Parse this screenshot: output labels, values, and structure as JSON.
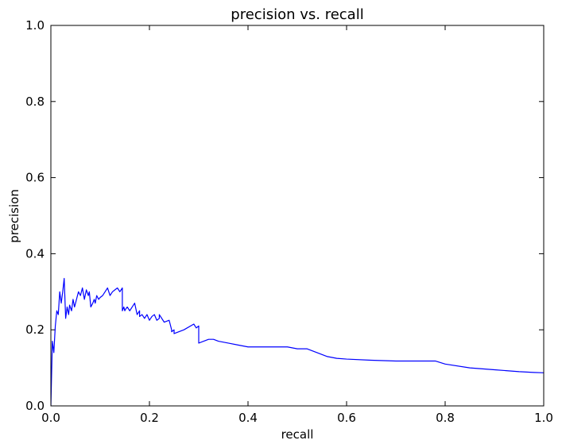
{
  "colors": {
    "line": "#0000ff",
    "axes": "#000000",
    "background": "#ffffff"
  },
  "chart_data": {
    "type": "line",
    "title": "precision vs. recall",
    "xlabel": "recall",
    "ylabel": "precision",
    "xlim": [
      0.0,
      1.0
    ],
    "ylim": [
      0.0,
      1.0
    ],
    "xticks": [
      "0.0",
      "0.2",
      "0.4",
      "0.6",
      "0.8",
      "1.0"
    ],
    "yticks": [
      "0.0",
      "0.2",
      "0.4",
      "0.6",
      "0.8",
      "1.0"
    ],
    "grid": false,
    "legend": false,
    "series": [
      {
        "x": [
          0.0,
          0.003,
          0.006,
          0.009,
          0.012,
          0.015,
          0.018,
          0.021,
          0.024,
          0.027,
          0.03,
          0.033,
          0.036,
          0.038,
          0.042,
          0.045,
          0.048,
          0.052,
          0.056,
          0.06,
          0.064,
          0.068,
          0.072,
          0.076,
          0.078,
          0.081,
          0.085,
          0.088,
          0.09,
          0.093,
          0.097,
          0.1,
          0.105,
          0.11,
          0.115,
          0.12,
          0.125,
          0.13,
          0.135,
          0.14,
          0.145,
          0.145,
          0.148,
          0.15,
          0.152,
          0.155,
          0.16,
          0.165,
          0.17,
          0.175,
          0.18,
          0.18,
          0.185,
          0.19,
          0.195,
          0.2,
          0.205,
          0.21,
          0.215,
          0.22,
          0.22,
          0.23,
          0.24,
          0.245,
          0.245,
          0.25,
          0.25,
          0.27,
          0.29,
          0.295,
          0.3,
          0.3,
          0.31,
          0.32,
          0.33,
          0.34,
          0.36,
          0.38,
          0.4,
          0.41,
          0.42,
          0.43,
          0.44,
          0.46,
          0.48,
          0.5,
          0.52,
          0.53,
          0.54,
          0.55,
          0.56,
          0.58,
          0.6,
          0.65,
          0.7,
          0.75,
          0.78,
          0.8,
          0.85,
          0.9,
          0.95,
          0.98,
          1.0
        ],
        "y": [
          0.0,
          0.17,
          0.14,
          0.21,
          0.25,
          0.24,
          0.3,
          0.27,
          0.3,
          0.335,
          0.23,
          0.26,
          0.24,
          0.265,
          0.25,
          0.28,
          0.26,
          0.28,
          0.3,
          0.29,
          0.31,
          0.28,
          0.305,
          0.29,
          0.3,
          0.26,
          0.27,
          0.28,
          0.27,
          0.29,
          0.28,
          0.285,
          0.29,
          0.3,
          0.31,
          0.29,
          0.3,
          0.305,
          0.31,
          0.3,
          0.31,
          0.25,
          0.26,
          0.25,
          0.255,
          0.26,
          0.25,
          0.26,
          0.27,
          0.24,
          0.25,
          0.235,
          0.24,
          0.23,
          0.24,
          0.225,
          0.235,
          0.24,
          0.225,
          0.23,
          0.24,
          0.22,
          0.225,
          0.2,
          0.195,
          0.2,
          0.19,
          0.2,
          0.215,
          0.205,
          0.21,
          0.165,
          0.17,
          0.175,
          0.175,
          0.17,
          0.165,
          0.16,
          0.155,
          0.155,
          0.155,
          0.155,
          0.155,
          0.155,
          0.155,
          0.15,
          0.15,
          0.145,
          0.14,
          0.135,
          0.13,
          0.125,
          0.123,
          0.12,
          0.118,
          0.118,
          0.118,
          0.11,
          0.1,
          0.095,
          0.09,
          0.088,
          0.087
        ]
      }
    ]
  }
}
